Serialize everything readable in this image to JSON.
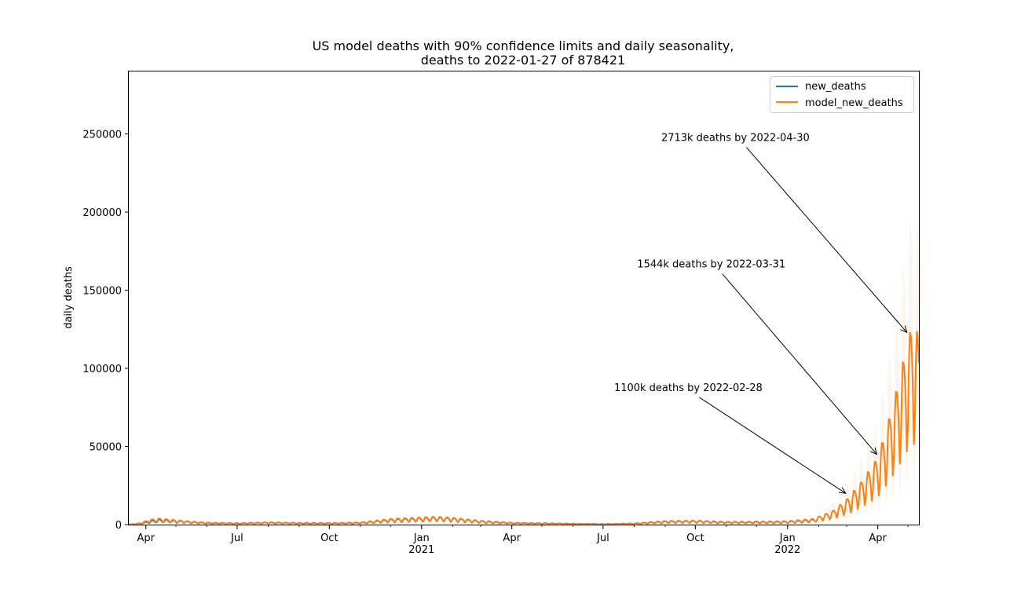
{
  "chart_data": {
    "type": "line",
    "title_line1": "US model deaths with 90% confidence limits and daily seasonality,",
    "title_line2": "deaths to 2022-01-27 of 878421",
    "xlabel": "",
    "ylabel": "daily deaths",
    "xlim": [
      "2020-03-15",
      "2022-05-12"
    ],
    "ylim": [
      0,
      290000
    ],
    "yticks": [
      0,
      50000,
      100000,
      150000,
      200000,
      250000
    ],
    "xticks": [
      {
        "date": "2020-04-01",
        "label": "Apr",
        "year": ""
      },
      {
        "date": "2020-07-01",
        "label": "Jul",
        "year": ""
      },
      {
        "date": "2020-10-01",
        "label": "Oct",
        "year": ""
      },
      {
        "date": "2021-01-01",
        "label": "Jan",
        "year": "2021"
      },
      {
        "date": "2021-04-01",
        "label": "Apr",
        "year": ""
      },
      {
        "date": "2021-07-01",
        "label": "Jul",
        "year": ""
      },
      {
        "date": "2021-10-01",
        "label": "Oct",
        "year": ""
      },
      {
        "date": "2022-01-01",
        "label": "Jan",
        "year": "2022"
      },
      {
        "date": "2022-04-01",
        "label": "Apr",
        "year": ""
      }
    ],
    "legend_position": "top-right",
    "series": [
      {
        "name": "new_deaths",
        "color": "#1f77b4",
        "points": [
          [
            "2020-03-15",
            50
          ],
          [
            "2020-03-25",
            500
          ],
          [
            "2020-04-05",
            1800
          ],
          [
            "2020-04-15",
            2500
          ],
          [
            "2020-05-01",
            2000
          ],
          [
            "2020-05-15",
            1500
          ],
          [
            "2020-06-01",
            900
          ],
          [
            "2020-07-01",
            700
          ],
          [
            "2020-08-01",
            1100
          ],
          [
            "2020-09-01",
            850
          ],
          [
            "2020-10-01",
            750
          ],
          [
            "2020-11-01",
            1000
          ],
          [
            "2020-12-01",
            2600
          ],
          [
            "2021-01-01",
            3300
          ],
          [
            "2021-01-15",
            3700
          ],
          [
            "2021-02-01",
            3200
          ],
          [
            "2021-03-01",
            1800
          ],
          [
            "2021-04-01",
            900
          ],
          [
            "2021-05-01",
            700
          ],
          [
            "2021-06-01",
            450
          ],
          [
            "2021-07-01",
            250
          ],
          [
            "2021-08-01",
            550
          ],
          [
            "2021-09-01",
            1700
          ],
          [
            "2021-10-01",
            1900
          ],
          [
            "2021-11-01",
            1300
          ],
          [
            "2021-12-01",
            1400
          ],
          [
            "2022-01-01",
            1600
          ],
          [
            "2022-01-27",
            2600
          ]
        ]
      },
      {
        "name": "model_new_deaths",
        "color": "#ff7f0e",
        "points": [
          [
            "2020-03-15",
            50
          ],
          [
            "2020-03-25",
            600
          ],
          [
            "2020-04-05",
            2400
          ],
          [
            "2020-04-15",
            3000
          ],
          [
            "2020-05-01",
            2200
          ],
          [
            "2020-05-15",
            1600
          ],
          [
            "2020-06-01",
            1000
          ],
          [
            "2020-07-01",
            750
          ],
          [
            "2020-08-01",
            1150
          ],
          [
            "2020-09-01",
            900
          ],
          [
            "2020-10-01",
            800
          ],
          [
            "2020-11-01",
            1100
          ],
          [
            "2020-12-01",
            2800
          ],
          [
            "2021-01-01",
            3500
          ],
          [
            "2021-01-15",
            3800
          ],
          [
            "2021-02-01",
            3300
          ],
          [
            "2021-03-01",
            1900
          ],
          [
            "2021-04-01",
            950
          ],
          [
            "2021-05-01",
            750
          ],
          [
            "2021-06-01",
            450
          ],
          [
            "2021-07-01",
            250
          ],
          [
            "2021-08-01",
            600
          ],
          [
            "2021-09-01",
            1800
          ],
          [
            "2021-10-01",
            2000
          ],
          [
            "2021-11-01",
            1400
          ],
          [
            "2021-12-01",
            1500
          ],
          [
            "2022-01-01",
            1700
          ],
          [
            "2022-01-27",
            2800
          ],
          [
            "2022-02-15",
            6500
          ],
          [
            "2022-03-01",
            12000
          ],
          [
            "2022-03-15",
            20000
          ],
          [
            "2022-04-01",
            32000
          ],
          [
            "2022-04-15",
            55000
          ],
          [
            "2022-04-25",
            75000
          ],
          [
            "2022-05-05",
            95000
          ],
          [
            "2022-05-12",
            90000
          ]
        ]
      }
    ],
    "annotations": [
      {
        "text": "1100k deaths by 2022-02-28",
        "target": [
          "2022-02-28",
          20000
        ],
        "text_at": [
          "2021-09-24",
          88000
        ]
      },
      {
        "text": "1544k deaths by 2022-03-31",
        "target": [
          "2022-03-31",
          45000
        ],
        "text_at": [
          "2021-10-17",
          167000
        ]
      },
      {
        "text": "2713k deaths by 2022-04-30",
        "target": [
          "2022-04-30",
          123000
        ],
        "text_at": [
          "2021-11-10",
          248000
        ]
      }
    ]
  }
}
